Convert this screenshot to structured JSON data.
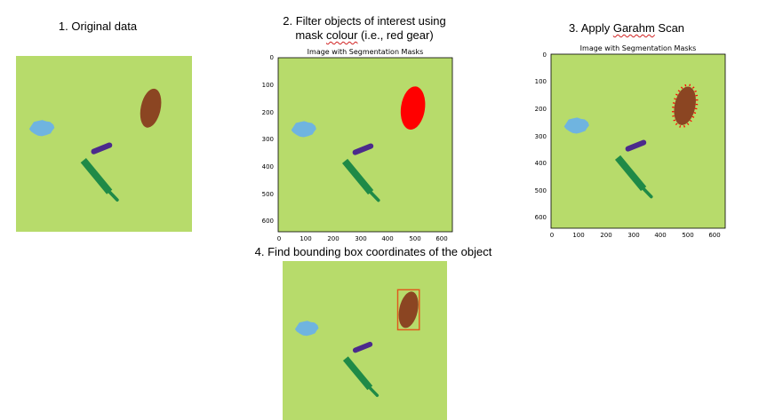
{
  "steps": [
    {
      "label": "1. Original data"
    },
    {
      "label_line1": "2. Filter objects of interest using",
      "label_line2_pre": "mask ",
      "label_line2_err": "colour",
      "label_line2_post": " (i.e., red gear)"
    },
    {
      "label_pre": "3. Apply ",
      "label_err": "Garahm",
      "label_post": " Scan"
    },
    {
      "label": "4. Find bounding box coordinates of the object"
    }
  ],
  "plot": {
    "title": "Image with Segmentation Masks",
    "xticks": [
      "0",
      "100",
      "200",
      "300",
      "400",
      "500",
      "600"
    ],
    "yticks": [
      "0",
      "100",
      "200",
      "300",
      "400",
      "500",
      "600"
    ]
  },
  "colors": {
    "background": "#b7db6b",
    "brown_gear": "#8b4522",
    "red_mask": "#ff0000",
    "blue_gear": "#6fb4e0",
    "purple_tool": "#4b2a8c",
    "green_tool": "#1f8a47",
    "bbox": "#e0581c"
  }
}
